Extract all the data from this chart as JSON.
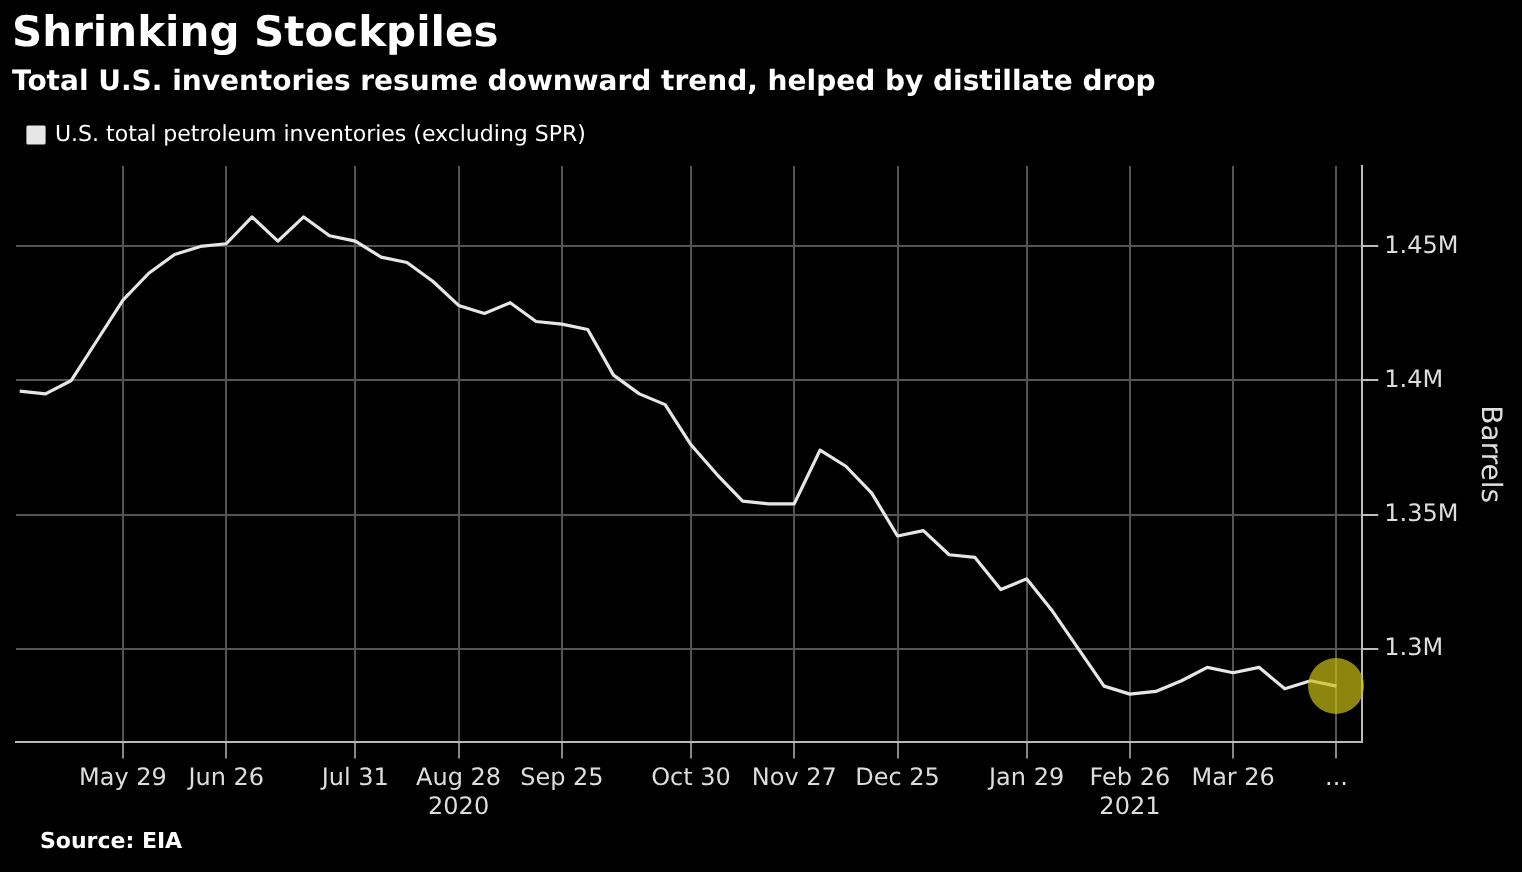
{
  "chart_data": {
    "type": "line",
    "title": "Shrinking Stockpiles",
    "subtitle": "Total U.S. inventories resume downward trend, helped by distillate drop",
    "ylabel": "Barrels",
    "annotations": [
      "Source: EIA"
    ],
    "x": [
      "2020-05-01",
      "2020-05-08",
      "2020-05-15",
      "2020-05-22",
      "2020-05-29",
      "2020-06-05",
      "2020-06-12",
      "2020-06-19",
      "2020-06-26",
      "2020-07-03",
      "2020-07-10",
      "2020-07-17",
      "2020-07-24",
      "2020-07-31",
      "2020-08-07",
      "2020-08-14",
      "2020-08-21",
      "2020-08-28",
      "2020-09-04",
      "2020-09-11",
      "2020-09-18",
      "2020-09-25",
      "2020-10-02",
      "2020-10-09",
      "2020-10-16",
      "2020-10-23",
      "2020-10-30",
      "2020-11-06",
      "2020-11-13",
      "2020-11-20",
      "2020-11-27",
      "2020-12-04",
      "2020-12-11",
      "2020-12-18",
      "2020-12-25",
      "2021-01-01",
      "2021-01-08",
      "2021-01-15",
      "2021-01-22",
      "2021-01-29",
      "2021-02-05",
      "2021-02-12",
      "2021-02-19",
      "2021-02-26",
      "2021-03-05",
      "2021-03-12",
      "2021-03-19",
      "2021-03-26",
      "2021-04-02",
      "2021-04-09",
      "2021-04-16",
      "2021-04-23"
    ],
    "series": [
      {
        "name": "U.S. total petroleum inventories (excluding SPR)",
        "color": "#e6e6e6",
        "values": [
          1.396,
          1.395,
          1.4,
          1.415,
          1.43,
          1.44,
          1.447,
          1.45,
          1.451,
          1.461,
          1.452,
          1.461,
          1.454,
          1.452,
          1.446,
          1.444,
          1.437,
          1.428,
          1.425,
          1.429,
          1.422,
          1.421,
          1.419,
          1.402,
          1.395,
          1.391,
          1.376,
          1.365,
          1.355,
          1.354,
          1.354,
          1.374,
          1.368,
          1.358,
          1.342,
          1.344,
          1.335,
          1.334,
          1.322,
          1.326,
          1.314,
          1.3,
          1.286,
          1.283,
          1.284,
          1.288,
          1.293,
          1.291,
          1.293,
          1.285,
          1.288,
          1.286
        ]
      }
    ],
    "xlim": [
      "2020-04-30",
      "2021-04-30"
    ],
    "xticks": [
      {
        "value": "2020-05-29",
        "label": "May 29"
      },
      {
        "value": "2020-06-26",
        "label": "Jun 26"
      },
      {
        "value": "2020-07-31",
        "label": "Jul 31"
      },
      {
        "value": "2020-08-28",
        "label": "Aug 28\n2020"
      },
      {
        "value": "2020-09-25",
        "label": "Sep 25"
      },
      {
        "value": "2020-10-30",
        "label": "Oct 30"
      },
      {
        "value": "2020-11-27",
        "label": "Nov 27"
      },
      {
        "value": "2020-12-25",
        "label": "Dec 25"
      },
      {
        "value": "2021-01-29",
        "label": "Jan 29"
      },
      {
        "value": "2021-02-26",
        "label": "Feb 26\n2021"
      },
      {
        "value": "2021-03-26",
        "label": "Mar 26"
      },
      {
        "value": "2021-04-23",
        "label": "..."
      }
    ],
    "ylim": [
      1.265,
      1.48
    ],
    "yticks": [
      {
        "value": 1.3,
        "label": "1.3M"
      },
      {
        "value": 1.35,
        "label": "1.35M"
      },
      {
        "value": 1.4,
        "label": "1.4M"
      },
      {
        "value": 1.45,
        "label": "1.45M"
      }
    ],
    "grid": true,
    "legend": "top left",
    "marker": "none",
    "line_style": "solid"
  }
}
